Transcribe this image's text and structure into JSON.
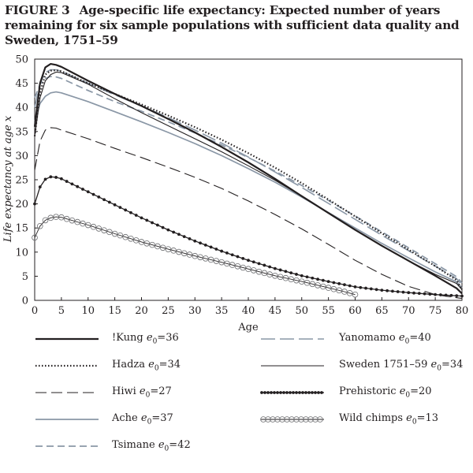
{
  "figure_label": "FIGURE 3",
  "title": "Age-specific life expectancy: Expected number of years remaining for six sample populations with sufficient data quality and Sweden, 1751–59",
  "chart_data": {
    "type": "line",
    "xlabel": "Age",
    "ylabel": "Life expectancy at age x",
    "xlim": [
      0,
      80
    ],
    "ylim": [
      0,
      50
    ],
    "xticks": [
      0,
      5,
      10,
      15,
      20,
      25,
      30,
      35,
      40,
      45,
      50,
      55,
      60,
      65,
      70,
      75,
      80
    ],
    "yticks": [
      0,
      5,
      10,
      15,
      20,
      25,
      30,
      35,
      40,
      45,
      50
    ],
    "grid": false,
    "legend_position": "bottom",
    "series": [
      {
        "name": "!Kung",
        "e0": "36",
        "style": "solid-thick",
        "color": "#231f20",
        "points": [
          [
            0,
            36
          ],
          [
            1,
            45
          ],
          [
            2,
            48.3
          ],
          [
            3,
            49
          ],
          [
            4,
            48.8
          ],
          [
            5,
            48.4
          ],
          [
            10,
            45.5
          ],
          [
            15,
            42.8
          ],
          [
            20,
            40.3
          ],
          [
            25,
            37.6
          ],
          [
            30,
            34.8
          ],
          [
            35,
            31.8
          ],
          [
            40,
            28.6
          ],
          [
            45,
            25.2
          ],
          [
            50,
            21.6
          ],
          [
            55,
            18.1
          ],
          [
            60,
            14.6
          ],
          [
            65,
            11.3
          ],
          [
            70,
            8.2
          ],
          [
            75,
            5.1
          ],
          [
            79,
            2.5
          ],
          [
            80,
            1.4
          ]
        ]
      },
      {
        "name": "Hadza",
        "e0": "34",
        "style": "dotted",
        "color": "#231f20",
        "points": [
          [
            0,
            34
          ],
          [
            1,
            43
          ],
          [
            2,
            46.8
          ],
          [
            3,
            47.6
          ],
          [
            4,
            47.7
          ],
          [
            5,
            47.5
          ],
          [
            10,
            45
          ],
          [
            15,
            42.8
          ],
          [
            20,
            40.6
          ],
          [
            25,
            38.3
          ],
          [
            30,
            35.9
          ],
          [
            35,
            33.3
          ],
          [
            40,
            30.5
          ],
          [
            45,
            27.5
          ],
          [
            50,
            24.3
          ],
          [
            55,
            20.9
          ],
          [
            60,
            17.4
          ],
          [
            65,
            13.9
          ],
          [
            70,
            10.5
          ],
          [
            75,
            7.1
          ],
          [
            79,
            4.2
          ],
          [
            80,
            2.2
          ]
        ]
      },
      {
        "name": "Hiwi",
        "e0": "27",
        "style": "long-dash",
        "color": "#231f20",
        "points": [
          [
            0,
            27
          ],
          [
            1,
            33
          ],
          [
            2,
            35.3
          ],
          [
            3,
            35.8
          ],
          [
            4,
            35.7
          ],
          [
            5,
            35.3
          ],
          [
            10,
            33.5
          ],
          [
            15,
            31.5
          ],
          [
            20,
            29.6
          ],
          [
            25,
            27.6
          ],
          [
            30,
            25.5
          ],
          [
            35,
            23.2
          ],
          [
            40,
            20.6
          ],
          [
            45,
            17.8
          ],
          [
            50,
            14.8
          ],
          [
            55,
            11.6
          ],
          [
            60,
            8.3
          ],
          [
            65,
            5.4
          ],
          [
            70,
            2.9
          ],
          [
            75,
            1.2
          ],
          [
            80,
            0.4
          ]
        ]
      },
      {
        "name": "Ache",
        "e0": "37",
        "style": "solid-gray",
        "color": "#8a97a6",
        "points": [
          [
            0,
            37
          ],
          [
            1,
            40.8
          ],
          [
            2,
            42.3
          ],
          [
            3,
            43
          ],
          [
            4,
            43.2
          ],
          [
            5,
            43
          ],
          [
            10,
            41.2
          ],
          [
            15,
            39.1
          ],
          [
            20,
            37
          ],
          [
            25,
            34.8
          ],
          [
            30,
            32.5
          ],
          [
            35,
            30
          ],
          [
            40,
            27.3
          ],
          [
            45,
            24.5
          ],
          [
            50,
            21.4
          ],
          [
            55,
            18.2
          ],
          [
            60,
            15
          ],
          [
            65,
            11.8
          ],
          [
            70,
            8.8
          ],
          [
            75,
            5.9
          ],
          [
            79,
            3.8
          ],
          [
            80,
            2.6
          ]
        ]
      },
      {
        "name": "Tsimane",
        "e0": "42",
        "style": "dash-gray",
        "color": "#8a97a6",
        "points": [
          [
            0,
            42
          ],
          [
            1,
            44.8
          ],
          [
            2,
            46
          ],
          [
            3,
            46.4
          ],
          [
            4,
            46.3
          ],
          [
            5,
            46
          ],
          [
            10,
            43.5
          ],
          [
            15,
            41.2
          ],
          [
            20,
            39.2
          ],
          [
            25,
            37
          ],
          [
            30,
            34.7
          ],
          [
            35,
            32.2
          ],
          [
            40,
            29.6
          ],
          [
            45,
            26.8
          ],
          [
            50,
            23.8
          ],
          [
            55,
            20.7
          ],
          [
            60,
            17.5
          ],
          [
            65,
            14.2
          ],
          [
            70,
            10.9
          ],
          [
            75,
            7.6
          ],
          [
            79,
            4.9
          ],
          [
            80,
            3.6
          ]
        ]
      },
      {
        "name": "Yanomamo",
        "e0": "40",
        "style": "dash-gray-long",
        "color": "#8a97a6",
        "points": [
          [
            0,
            40
          ],
          [
            1,
            45
          ],
          [
            2,
            47.2
          ],
          [
            3,
            47.8
          ],
          [
            4,
            47.8
          ],
          [
            5,
            47.5
          ],
          [
            10,
            45
          ],
          [
            15,
            42.6
          ],
          [
            20,
            40.3
          ],
          [
            25,
            37.9
          ],
          [
            30,
            35.3
          ],
          [
            35,
            32.6
          ],
          [
            40,
            29.7
          ],
          [
            45,
            26.6
          ],
          [
            50,
            23.4
          ],
          [
            55,
            20.1
          ],
          [
            60,
            16.8
          ],
          [
            65,
            13.5
          ],
          [
            70,
            10.3
          ],
          [
            75,
            7.1
          ],
          [
            79,
            4.5
          ],
          [
            80,
            3.2
          ]
        ]
      },
      {
        "name": "Sweden 1751–59",
        "e0": "34",
        "style": "solid-thin",
        "color": "#231f20",
        "points": [
          [
            0,
            34
          ],
          [
            1,
            42
          ],
          [
            2,
            45.5
          ],
          [
            3,
            46.8
          ],
          [
            4,
            47.3
          ],
          [
            5,
            47.2
          ],
          [
            10,
            44.8
          ],
          [
            15,
            41.8
          ],
          [
            20,
            38.9
          ],
          [
            25,
            36.2
          ],
          [
            30,
            33.5
          ],
          [
            35,
            30.8
          ],
          [
            40,
            27.9
          ],
          [
            45,
            24.9
          ],
          [
            50,
            21.6
          ],
          [
            55,
            18.1
          ],
          [
            60,
            14.6
          ],
          [
            65,
            11.3
          ],
          [
            70,
            8.2
          ],
          [
            75,
            5.4
          ],
          [
            79,
            3.5
          ],
          [
            80,
            2.2
          ]
        ]
      },
      {
        "name": "Prehistoric",
        "e0": "20",
        "style": "beaded",
        "color": "#231f20",
        "points": [
          [
            0,
            20
          ],
          [
            1,
            23.5
          ],
          [
            2,
            25.1
          ],
          [
            3,
            25.6
          ],
          [
            4,
            25.5
          ],
          [
            5,
            25.2
          ],
          [
            10,
            22.5
          ],
          [
            15,
            19.8
          ],
          [
            20,
            17.1
          ],
          [
            25,
            14.6
          ],
          [
            30,
            12.3
          ],
          [
            35,
            10.2
          ],
          [
            40,
            8.3
          ],
          [
            45,
            6.6
          ],
          [
            50,
            5.1
          ],
          [
            55,
            3.9
          ],
          [
            60,
            2.8
          ],
          [
            65,
            2.1
          ],
          [
            70,
            1.6
          ],
          [
            75,
            1.2
          ],
          [
            80,
            0.9
          ]
        ]
      },
      {
        "name": "Wild chimps",
        "e0": "13",
        "style": "circles",
        "color": "#231f20",
        "points": [
          [
            0,
            13
          ],
          [
            1,
            15.4
          ],
          [
            2,
            16.6
          ],
          [
            3,
            17.1
          ],
          [
            4,
            17.3
          ],
          [
            5,
            17.2
          ],
          [
            10,
            15.6
          ],
          [
            15,
            13.8
          ],
          [
            20,
            12.1
          ],
          [
            25,
            10.6
          ],
          [
            30,
            9.2
          ],
          [
            35,
            7.9
          ],
          [
            40,
            6.5
          ],
          [
            45,
            5.1
          ],
          [
            50,
            3.9
          ],
          [
            55,
            2.6
          ],
          [
            58,
            1.8
          ],
          [
            60,
            1.2
          ]
        ]
      }
    ]
  }
}
